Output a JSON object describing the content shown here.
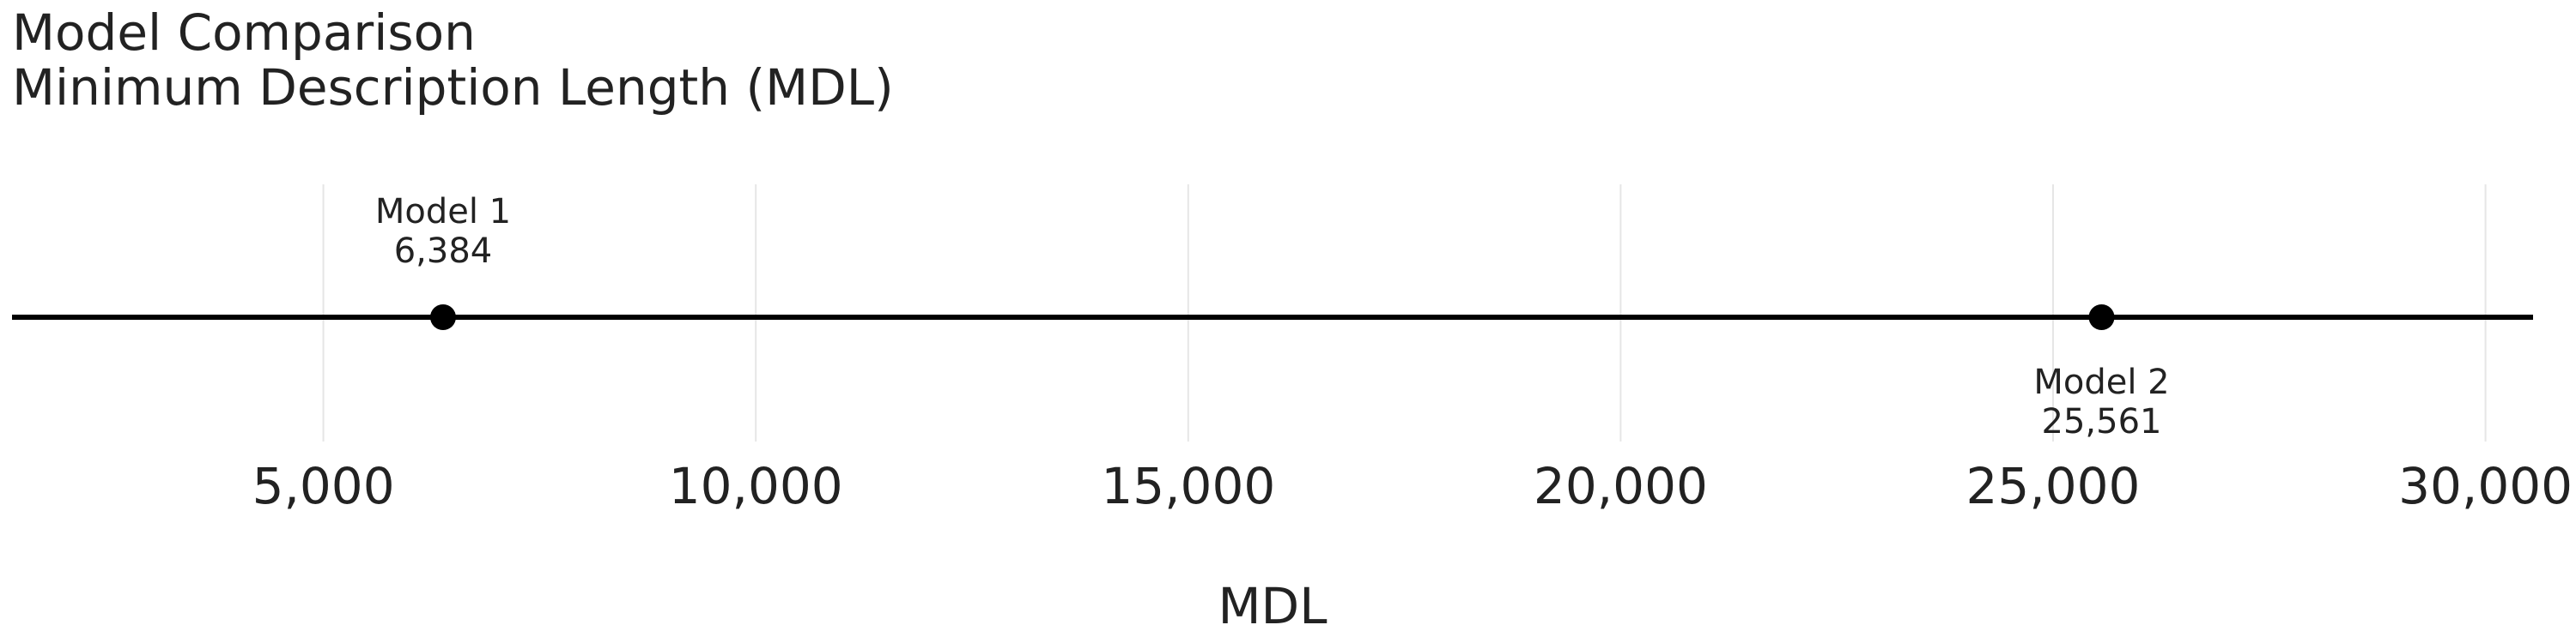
{
  "chart_data": {
    "type": "scatter",
    "title": "Model Comparison",
    "subtitle": "Minimum Description Length (MDL)",
    "xlabel": "MDL",
    "ylabel": "",
    "xlim": [
      1400,
      30550
    ],
    "x_ticks": [
      5000,
      10000,
      15000,
      20000,
      25000,
      30000
    ],
    "x_tick_labels": [
      "5,000",
      "10,000",
      "15,000",
      "20,000",
      "25,000",
      "30,000"
    ],
    "grid": true,
    "legend": "none",
    "points": [
      {
        "name": "Model 1",
        "x": 6384,
        "value_label": "6,384",
        "label_position": "above"
      },
      {
        "name": "Model 2",
        "x": 25561,
        "value_label": "25,561",
        "label_position": "below"
      }
    ],
    "colors": {
      "points": "#000000",
      "line": "#000000",
      "grid": "#e6e6e6",
      "text": "#222222"
    }
  }
}
